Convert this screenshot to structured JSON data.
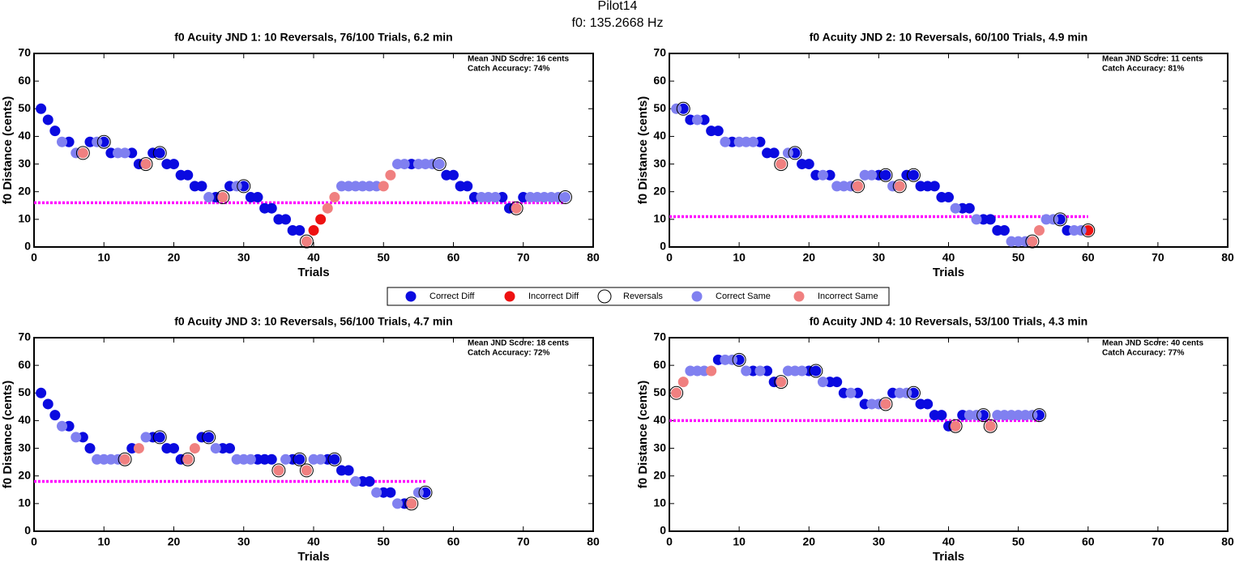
{
  "title": "Pilot14",
  "subtitle": "f0: 135.2668 Hz",
  "chart_data": [
    {
      "type": "scatter",
      "title": "f0 Acuity JND 1: 10 Reversals, 76/100 Trials, 6.2 min",
      "x_label": "Trials",
      "y_label": "f0 Distance (cents)",
      "annotations": [
        "Mean JND Score: 16 cents",
        "Catch Accuracy: 74%"
      ],
      "mean_line": 16,
      "mean_line_color": "#ff00ff",
      "xlim": [
        0,
        80
      ],
      "xticks": [
        0,
        10,
        20,
        30,
        40,
        50,
        60,
        70,
        80
      ],
      "ylim": [
        0,
        70
      ],
      "yticks": [
        0,
        10,
        20,
        30,
        40,
        50,
        60,
        70
      ],
      "series": [
        {
          "name": "Correct Diff",
          "color": "#0a0ae0",
          "x": [
            1,
            2,
            3,
            5,
            8,
            10,
            11,
            14,
            15,
            17,
            18,
            19,
            20,
            21,
            22,
            23,
            24,
            26,
            28,
            30,
            31,
            32,
            33,
            34,
            35,
            36,
            37,
            38,
            54,
            59,
            60,
            61,
            62,
            63,
            67,
            68,
            70
          ],
          "values": [
            50,
            46,
            42,
            38,
            38,
            38,
            34,
            34,
            30,
            34,
            34,
            30,
            30,
            26,
            26,
            22,
            22,
            18,
            22,
            22,
            18,
            18,
            14,
            14,
            10,
            10,
            6,
            6,
            30,
            26,
            26,
            22,
            22,
            18,
            18,
            14,
            18
          ]
        },
        {
          "name": "Incorrect Diff",
          "color": "#ee1111",
          "x": [
            40,
            41
          ],
          "values": [
            6,
            10
          ]
        },
        {
          "name": "Correct Same",
          "color": "#8080f0",
          "x": [
            4,
            6,
            9,
            12,
            13,
            25,
            29,
            44,
            45,
            46,
            47,
            48,
            49,
            52,
            53,
            55,
            56,
            57,
            58,
            64,
            65,
            66,
            71,
            72,
            73,
            74,
            75,
            76
          ],
          "values": [
            38,
            34,
            38,
            34,
            34,
            18,
            22,
            22,
            22,
            22,
            22,
            22,
            22,
            30,
            30,
            30,
            30,
            30,
            30,
            18,
            18,
            18,
            18,
            18,
            18,
            18,
            18,
            18
          ]
        },
        {
          "name": "Incorrect Same",
          "color": "#f08080",
          "x": [
            7,
            16,
            27,
            39,
            42,
            43,
            50,
            51,
            69
          ],
          "values": [
            34,
            30,
            18,
            2,
            14,
            18,
            22,
            26,
            14
          ]
        },
        {
          "name": "Reversals",
          "color": "#000000",
          "hollow": true,
          "x": [
            7,
            10,
            16,
            18,
            27,
            30,
            39,
            58,
            69,
            76
          ],
          "values": [
            34,
            38,
            30,
            34,
            18,
            22,
            2,
            30,
            14,
            18
          ]
        }
      ]
    },
    {
      "type": "scatter",
      "title": "f0 Acuity JND 2: 10 Reversals, 60/100 Trials, 4.9 min",
      "x_label": "Trials",
      "y_label": "f0 Distance (cents)",
      "annotations": [
        "Mean JND Score: 11 cents",
        "Catch Accuracy: 81%"
      ],
      "mean_line": 11,
      "mean_line_color": "#ff00ff",
      "xlim": [
        0,
        80
      ],
      "xticks": [
        0,
        10,
        20,
        30,
        40,
        50,
        60,
        70,
        80
      ],
      "ylim": [
        0,
        70
      ],
      "yticks": [
        0,
        10,
        20,
        30,
        40,
        50,
        60,
        70
      ],
      "series": [
        {
          "name": "Correct Diff",
          "color": "#0a0ae0",
          "x": [
            2,
            3,
            5,
            6,
            7,
            9,
            13,
            14,
            15,
            18,
            19,
            20,
            21,
            23,
            30,
            31,
            34,
            35,
            36,
            37,
            38,
            39,
            40,
            42,
            43,
            45,
            46,
            47,
            48,
            56,
            57
          ],
          "values": [
            50,
            46,
            46,
            42,
            42,
            38,
            38,
            34,
            34,
            34,
            30,
            30,
            26,
            26,
            26,
            26,
            26,
            26,
            22,
            22,
            22,
            18,
            18,
            14,
            14,
            10,
            10,
            6,
            6,
            10,
            6
          ]
        },
        {
          "name": "Incorrect Diff",
          "color": "#ee1111",
          "x": [
            60
          ],
          "values": [
            6
          ]
        },
        {
          "name": "Correct Same",
          "color": "#8080f0",
          "x": [
            1,
            4,
            8,
            10,
            11,
            12,
            17,
            22,
            24,
            25,
            26,
            28,
            29,
            32,
            41,
            44,
            49,
            50,
            51,
            54,
            55,
            58,
            59
          ],
          "values": [
            50,
            46,
            38,
            38,
            38,
            38,
            34,
            26,
            22,
            22,
            22,
            26,
            26,
            22,
            14,
            10,
            2,
            2,
            2,
            10,
            10,
            6,
            6
          ]
        },
        {
          "name": "Incorrect Same",
          "color": "#f08080",
          "x": [
            16,
            27,
            33,
            52,
            53
          ],
          "values": [
            30,
            22,
            22,
            2,
            6
          ]
        },
        {
          "name": "Reversals",
          "color": "#000000",
          "hollow": true,
          "x": [
            2,
            16,
            18,
            27,
            31,
            33,
            35,
            52,
            56,
            60
          ],
          "values": [
            50,
            30,
            34,
            22,
            26,
            22,
            26,
            2,
            10,
            6
          ]
        }
      ]
    },
    {
      "type": "scatter",
      "title": "f0 Acuity JND 3: 10 Reversals, 56/100 Trials, 4.7 min",
      "x_label": "Trials",
      "y_label": "f0 Distance (cents)",
      "annotations": [
        "Mean JND Score: 18 cents",
        "Catch Accuracy: 72%"
      ],
      "mean_line": 18,
      "mean_line_color": "#ff00ff",
      "xlim": [
        0,
        80
      ],
      "xticks": [
        0,
        10,
        20,
        30,
        40,
        50,
        60,
        70,
        80
      ],
      "ylim": [
        0,
        70
      ],
      "yticks": [
        0,
        10,
        20,
        30,
        40,
        50,
        60,
        70
      ],
      "series": [
        {
          "name": "Correct Diff",
          "color": "#0a0ae0",
          "x": [
            1,
            2,
            3,
            5,
            7,
            8,
            14,
            17,
            18,
            19,
            20,
            21,
            24,
            25,
            27,
            28,
            32,
            33,
            34,
            37,
            38,
            42,
            43,
            44,
            45,
            47,
            48,
            50,
            51,
            53,
            56
          ],
          "values": [
            50,
            46,
            42,
            38,
            34,
            30,
            30,
            34,
            34,
            30,
            30,
            26,
            34,
            34,
            30,
            30,
            26,
            26,
            26,
            26,
            26,
            26,
            26,
            22,
            22,
            18,
            18,
            14,
            14,
            10,
            14
          ]
        },
        {
          "name": "Incorrect Diff",
          "color": "#ee1111",
          "x": [],
          "values": []
        },
        {
          "name": "Correct Same",
          "color": "#8080f0",
          "x": [
            4,
            6,
            9,
            10,
            11,
            12,
            16,
            26,
            29,
            30,
            31,
            36,
            40,
            41,
            46,
            49,
            52,
            55
          ],
          "values": [
            38,
            34,
            26,
            26,
            26,
            26,
            34,
            30,
            26,
            26,
            26,
            26,
            26,
            26,
            18,
            14,
            10,
            14
          ]
        },
        {
          "name": "Incorrect Same",
          "color": "#f08080",
          "x": [
            13,
            15,
            22,
            23,
            35,
            39,
            54
          ],
          "values": [
            26,
            30,
            26,
            30,
            22,
            22,
            10
          ]
        },
        {
          "name": "Reversals",
          "color": "#000000",
          "hollow": true,
          "x": [
            13,
            18,
            22,
            25,
            35,
            38,
            39,
            43,
            54,
            56
          ],
          "values": [
            26,
            34,
            26,
            34,
            22,
            26,
            22,
            26,
            10,
            14
          ]
        }
      ]
    },
    {
      "type": "scatter",
      "title": "f0 Acuity JND 4: 10 Reversals, 53/100 Trials, 4.3 min",
      "x_label": "Trials",
      "y_label": "f0 Distance (cents)",
      "annotations": [
        "Mean JND Score: 40 cents",
        "Catch Accuracy: 77%"
      ],
      "mean_line": 40,
      "mean_line_color": "#ff00ff",
      "xlim": [
        0,
        80
      ],
      "xticks": [
        0,
        10,
        20,
        30,
        40,
        50,
        60,
        70,
        80
      ],
      "ylim": [
        0,
        70
      ],
      "yticks": [
        0,
        10,
        20,
        30,
        40,
        50,
        60,
        70
      ],
      "series": [
        {
          "name": "Correct Diff",
          "color": "#0a0ae0",
          "x": [
            7,
            10,
            12,
            14,
            15,
            20,
            21,
            23,
            24,
            25,
            27,
            28,
            32,
            35,
            36,
            37,
            38,
            39,
            40,
            42,
            45,
            53
          ],
          "values": [
            62,
            62,
            58,
            58,
            54,
            58,
            58,
            54,
            54,
            50,
            50,
            46,
            50,
            50,
            46,
            46,
            42,
            42,
            38,
            42,
            42,
            42
          ]
        },
        {
          "name": "Incorrect Diff",
          "color": "#ee1111",
          "x": [],
          "values": []
        },
        {
          "name": "Correct Same",
          "color": "#8080f0",
          "x": [
            3,
            4,
            5,
            8,
            9,
            11,
            13,
            17,
            18,
            19,
            22,
            26,
            29,
            30,
            33,
            34,
            43,
            44,
            47,
            48,
            49,
            50,
            51,
            52
          ],
          "values": [
            58,
            58,
            58,
            62,
            62,
            58,
            58,
            58,
            58,
            58,
            54,
            50,
            46,
            46,
            50,
            50,
            42,
            42,
            42,
            42,
            42,
            42,
            42,
            42
          ]
        },
        {
          "name": "Incorrect Same",
          "color": "#f08080",
          "x": [
            1,
            2,
            6,
            16,
            31,
            41,
            46
          ],
          "values": [
            50,
            54,
            58,
            54,
            46,
            38,
            38
          ]
        },
        {
          "name": "Reversals",
          "color": "#000000",
          "hollow": true,
          "x": [
            1,
            10,
            16,
            21,
            31,
            35,
            41,
            45,
            46,
            53
          ],
          "values": [
            50,
            62,
            54,
            58,
            46,
            50,
            38,
            42,
            38,
            42
          ]
        }
      ]
    }
  ]
}
